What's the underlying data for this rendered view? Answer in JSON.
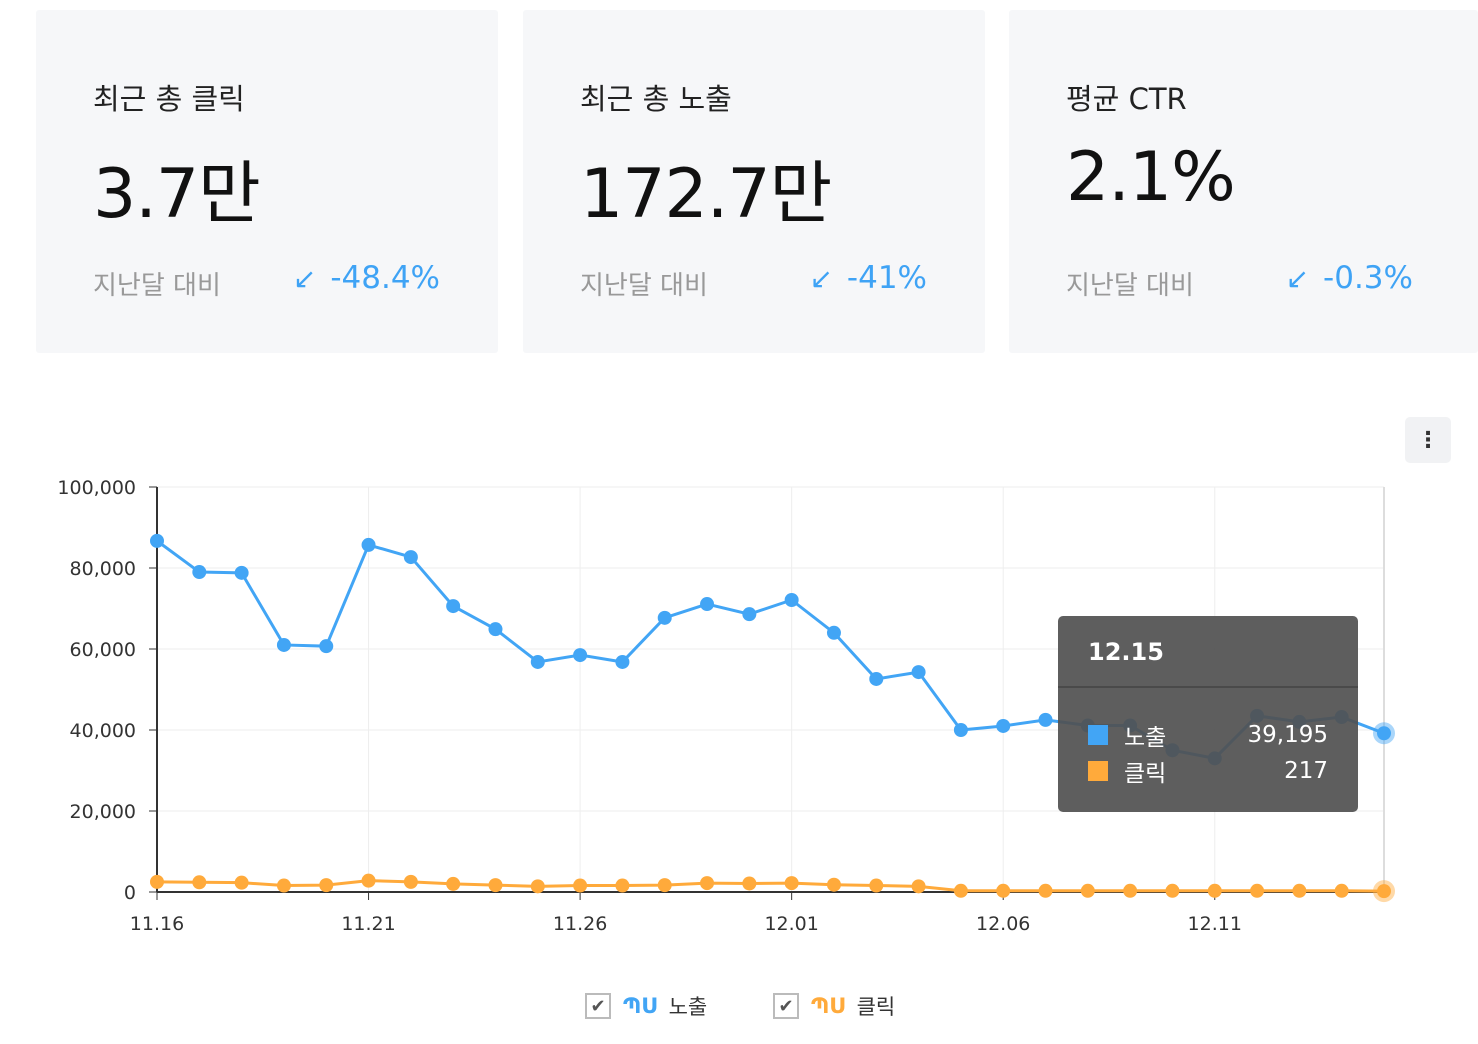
{
  "cards": [
    {
      "title": "최근 총 클릭",
      "value": "3.7만",
      "compare_label": "지난달 대비",
      "change": "-48.4%",
      "arrow": "↙"
    },
    {
      "title": "최근 총 노출",
      "value": "172.7만",
      "compare_label": "지난달 대비",
      "change": "-41%",
      "arrow": "↙"
    },
    {
      "title": "평균 CTR",
      "value": "2.1%",
      "compare_label": "지난달 대비",
      "change": "-0.3%",
      "arrow": "↙"
    }
  ],
  "menu_icon": "⋮",
  "tooltip": {
    "date": "12.15",
    "rows": [
      {
        "label": "노출",
        "value": "39,195",
        "color": "#42a5f5"
      },
      {
        "label": "클릭",
        "value": "217",
        "color": "#ffaa3b"
      }
    ]
  },
  "legend": [
    {
      "label": "노출",
      "checked": true,
      "color": "#42a5f5"
    },
    {
      "label": "클릭",
      "checked": true,
      "color": "#ffaa3b"
    }
  ],
  "chart_data": {
    "type": "line",
    "x": [
      "11.16",
      "11.17",
      "11.18",
      "11.19",
      "11.20",
      "11.21",
      "11.22",
      "11.23",
      "11.24",
      "11.25",
      "11.26",
      "11.27",
      "11.28",
      "11.29",
      "11.30",
      "12.01",
      "12.02",
      "12.03",
      "12.04",
      "12.05",
      "12.06",
      "12.07",
      "12.08",
      "12.09",
      "12.10",
      "12.11",
      "12.12",
      "12.13",
      "12.14",
      "12.15"
    ],
    "x_ticks": [
      "11.16",
      "11.21",
      "11.26",
      "12.01",
      "12.06",
      "12.11"
    ],
    "y_ticks": [
      "0",
      "20,000",
      "40,000",
      "60,000",
      "80,000",
      "100,000"
    ],
    "ylim": [
      0,
      100000
    ],
    "grid": true,
    "legend": "bottom",
    "series": [
      {
        "name": "노출",
        "color": "#42a5f5",
        "values": [
          86700,
          79000,
          78800,
          61000,
          60700,
          85700,
          82700,
          70600,
          64900,
          56800,
          58500,
          56800,
          67700,
          71100,
          68600,
          72100,
          64000,
          52600,
          54300,
          40000,
          41000,
          42500,
          41100,
          41100,
          35000,
          33000,
          43500,
          42000,
          43200,
          39195
        ]
      },
      {
        "name": "클릭",
        "color": "#ffaa3b",
        "values": [
          2500,
          2400,
          2300,
          1600,
          1700,
          2800,
          2500,
          2000,
          1700,
          1400,
          1600,
          1600,
          1700,
          2200,
          2100,
          2200,
          1800,
          1600,
          1400,
          300,
          300,
          300,
          300,
          300,
          300,
          300,
          300,
          300,
          300,
          217
        ]
      }
    ]
  }
}
